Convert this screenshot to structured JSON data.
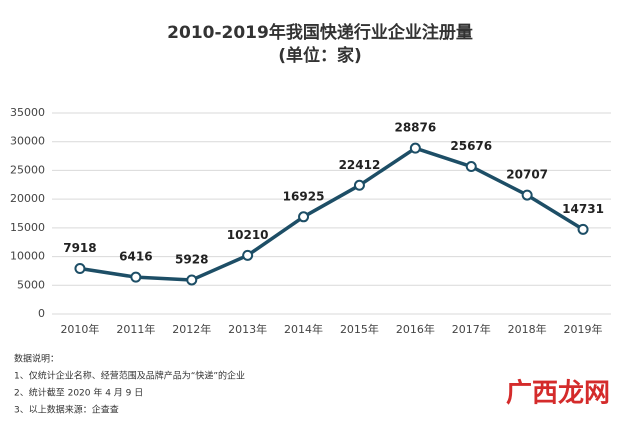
{
  "chart_data": {
    "type": "line",
    "title": "2010-2019年我国快递行业企业注册量",
    "subtitle": "(单位：家)",
    "categories": [
      "2010年",
      "2011年",
      "2012年",
      "2013年",
      "2014年",
      "2015年",
      "2016年",
      "2017年",
      "2018年",
      "2019年"
    ],
    "series": [
      {
        "name": "企业注册量",
        "color": "#1d4e66",
        "values": [
          7918,
          6416,
          5928,
          10210,
          16925,
          22412,
          28876,
          25676,
          20707,
          14731
        ]
      }
    ],
    "ylim": [
      0,
      35000
    ],
    "yticks": [
      0,
      5000,
      10000,
      15000,
      20000,
      25000,
      30000,
      35000
    ],
    "grid": true,
    "notes": [
      "数据说明：",
      "1、仅统计企业名称、经营范围及品牌产品为“快递”的企业",
      "2、统计截至 2020 年 4 月 9 日",
      "3、以上数据来源：企查查"
    ],
    "watermark": "广西龙网"
  }
}
